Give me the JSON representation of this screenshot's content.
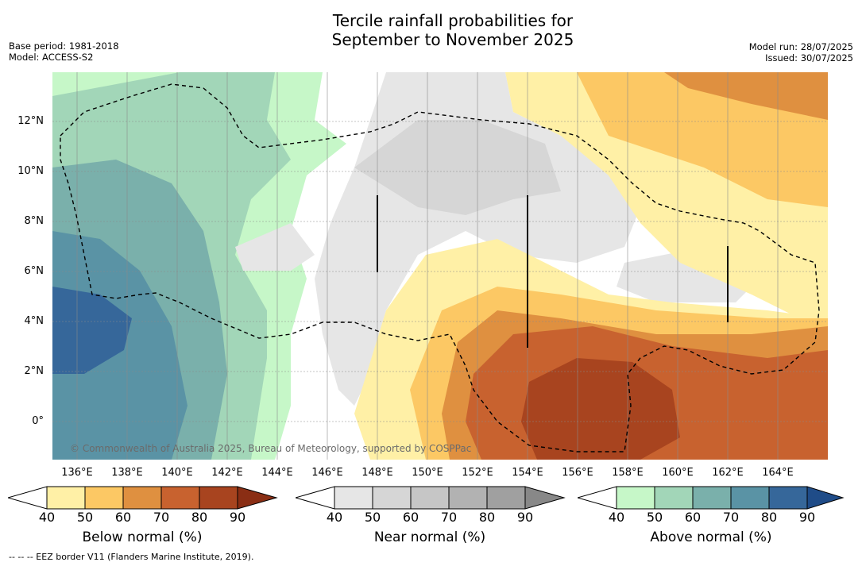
{
  "title_line1": "Tercile rainfall probabilities for",
  "title_line2": "September to November 2025",
  "base_period": "Base period: 1981-2018",
  "model": "Model: ACCESS-S2",
  "model_run": "Model run: 28/07/2025",
  "issued": "Issued: 30/07/2025",
  "copyright": "© Commonwealth of Australia 2025, Bureau of Meteorology, supported by COSPPac",
  "footer": "-- -- -- EEZ border V11 (Flanders Marine Institute, 2019).",
  "lat_labels": [
    "12°N",
    "10°N",
    "8°N",
    "6°N",
    "4°N",
    "2°N",
    "0°"
  ],
  "lon_labels": [
    "136°E",
    "138°E",
    "140°E",
    "142°E",
    "144°E",
    "146°E",
    "148°E",
    "150°E",
    "152°E",
    "154°E",
    "156°E",
    "158°E",
    "160°E",
    "162°E",
    "164°E"
  ],
  "colorbars": {
    "below": {
      "label": "Below normal (%)",
      "ticks": [
        "40",
        "50",
        "60",
        "70",
        "80",
        "90"
      ],
      "colors": [
        "#fff0a6",
        "#fcc864",
        "#df9040",
        "#c8622f",
        "#a8441f",
        "#8a2e14"
      ]
    },
    "near": {
      "label": "Near normal (%)",
      "ticks": [
        "40",
        "50",
        "60",
        "70",
        "80",
        "90"
      ],
      "colors": [
        "#e6e6e6",
        "#d6d6d6",
        "#c6c6c6",
        "#b2b2b2",
        "#a0a0a0",
        "#888888"
      ]
    },
    "above": {
      "label": "Above normal (%)",
      "ticks": [
        "40",
        "50",
        "60",
        "70",
        "80",
        "90"
      ],
      "colors": [
        "#c6f7c8",
        "#a2d6b8",
        "#7ab0ab",
        "#5a93a5",
        "#36679a",
        "#1f4c88"
      ]
    }
  }
}
